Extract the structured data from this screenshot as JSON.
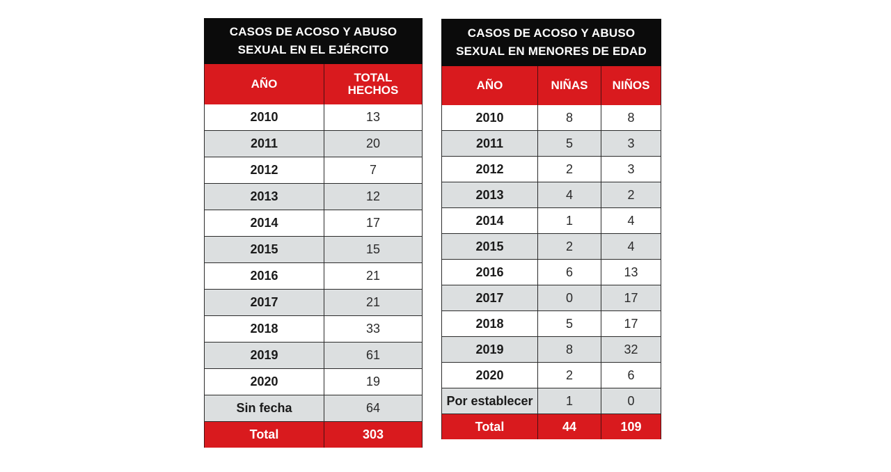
{
  "table_ejercito": {
    "title_line1": "CASOS DE ACOSO Y ABUSO",
    "title_line2": "SEXUAL EN EL EJÉRCITO",
    "header": {
      "year": "AÑO",
      "total_line1": "TOTAL",
      "total_line2": "HECHOS"
    },
    "rows": [
      {
        "year": "2010",
        "total": "13"
      },
      {
        "year": "2011",
        "total": "20"
      },
      {
        "year": "2012",
        "total": "7"
      },
      {
        "year": "2013",
        "total": "12"
      },
      {
        "year": "2014",
        "total": "17"
      },
      {
        "year": "2015",
        "total": "15"
      },
      {
        "year": "2016",
        "total": "21"
      },
      {
        "year": "2017",
        "total": "21"
      },
      {
        "year": "2018",
        "total": "33"
      },
      {
        "year": "2019",
        "total": "61"
      },
      {
        "year": "2020",
        "total": "19"
      },
      {
        "year": "Sin fecha",
        "total": "64"
      }
    ],
    "footer": {
      "label": "Total",
      "total": "303"
    }
  },
  "table_menores": {
    "title_line1": "CASOS DE ACOSO Y ABUSO",
    "title_line2": "SEXUAL EN MENORES DE EDAD",
    "header": {
      "year": "AÑO",
      "girls": "NIÑAS",
      "boys": "NIÑOS"
    },
    "rows": [
      {
        "year": "2010",
        "girls": "8",
        "boys": "8"
      },
      {
        "year": "2011",
        "girls": "5",
        "boys": "3"
      },
      {
        "year": "2012",
        "girls": "2",
        "boys": "3"
      },
      {
        "year": "2013",
        "girls": "4",
        "boys": "2"
      },
      {
        "year": "2014",
        "girls": "1",
        "boys": "4"
      },
      {
        "year": "2015",
        "girls": "2",
        "boys": "4"
      },
      {
        "year": "2016",
        "girls": "6",
        "boys": "13"
      },
      {
        "year": "2017",
        "girls": "0",
        "boys": "17"
      },
      {
        "year": "2018",
        "girls": "5",
        "boys": "17"
      },
      {
        "year": "2019",
        "girls": "8",
        "boys": "32"
      },
      {
        "year": "2020",
        "girls": "2",
        "boys": "6"
      },
      {
        "year": "Por establecer",
        "girls": "1",
        "boys": "0"
      }
    ],
    "footer": {
      "label": "Total",
      "girls": "44",
      "boys": "109"
    }
  },
  "colors": {
    "title_bg": "#0b0b0b",
    "header_bg": "#d91a1e",
    "row_alt_bg": "#dcdfe0",
    "text": "#2a2a2a"
  }
}
